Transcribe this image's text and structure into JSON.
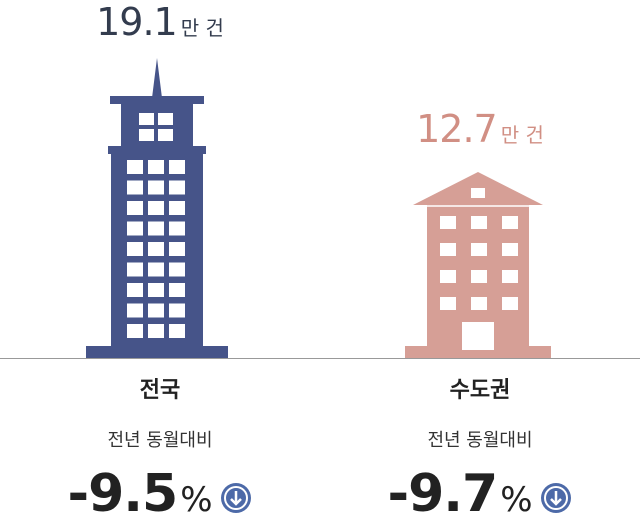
{
  "items": [
    {
      "value": "19.1",
      "unit": "만 건",
      "name": "전국",
      "subtitle": "전년 동월대비",
      "change": "-9.5",
      "change_unit": "%"
    },
    {
      "value": "12.7",
      "unit": "만 건",
      "name": "수도권",
      "subtitle": "전년 동월대비",
      "change": "-9.7",
      "change_unit": "%"
    }
  ]
}
